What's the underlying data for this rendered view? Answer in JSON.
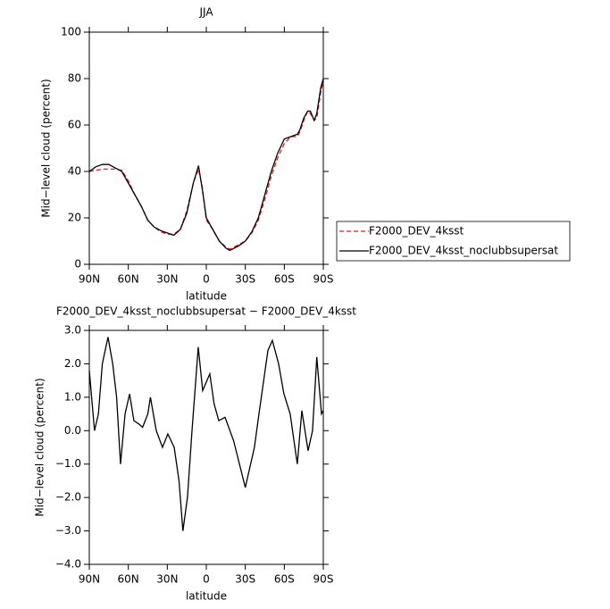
{
  "chart_data": [
    {
      "type": "line",
      "title": "JJA",
      "x_label": "latitude",
      "y_label": "Mid−level cloud (percent)",
      "xlim": [
        90,
        -90
      ],
      "xticks": [
        {
          "value": 90,
          "label": "90N"
        },
        {
          "value": 60,
          "label": "60N"
        },
        {
          "value": 30,
          "label": "30N"
        },
        0,
        {
          "value": -30,
          "label": "30S"
        },
        {
          "value": -60,
          "label": "60S"
        },
        {
          "value": -90,
          "label": "90S"
        }
      ],
      "ylim": [
        0,
        100
      ],
      "yticks": [
        0,
        20,
        40,
        60,
        80,
        100
      ],
      "legend": "right",
      "x": [
        90,
        85,
        80,
        75,
        70,
        65,
        60,
        55,
        50,
        45,
        40,
        35,
        30,
        25,
        20,
        15,
        10,
        6,
        3,
        0,
        -5,
        -10,
        -15,
        -18,
        -20,
        -25,
        -30,
        -35,
        -40,
        -45,
        -50,
        -55,
        -60,
        -65,
        -70,
        -72,
        -75,
        -78,
        -80,
        -83,
        -85,
        -88,
        -90
      ],
      "series": [
        {
          "name": "F2000_DEV_4ksst",
          "color": "#e41a1c",
          "dashed": true,
          "values": [
            40,
            40.5,
            41,
            41,
            41,
            40.5,
            36,
            30,
            25,
            19,
            16,
            14,
            13,
            13,
            15,
            23,
            35,
            41,
            33,
            19,
            15,
            10,
            7.5,
            6.5,
            7,
            8.5,
            10,
            13.5,
            19,
            28,
            38,
            46,
            52,
            55,
            55,
            57,
            62,
            66,
            65,
            62,
            63,
            74,
            79
          ]
        },
        {
          "name": "F2000_DEV_4ksst_noclubbsupersat",
          "color": "#000000",
          "dashed": false,
          "values": [
            40,
            42,
            43,
            43,
            41.5,
            40,
            35,
            30,
            25,
            19,
            16,
            14.5,
            13.5,
            12.5,
            15,
            22,
            35,
            42.5,
            32,
            20,
            15,
            10,
            7,
            6,
            6.5,
            8,
            10,
            14,
            20,
            30,
            40,
            48,
            54,
            55,
            56,
            58,
            63,
            66,
            66,
            62,
            65,
            76,
            80
          ]
        }
      ]
    },
    {
      "type": "line",
      "title": "F2000_DEV_4ksst_noclubbsupersat − F2000_DEV_4ksst",
      "x_label": "latitude",
      "y_label": "Mid−level cloud (percent)",
      "xlim": [
        90,
        -90
      ],
      "xticks": [
        {
          "value": 90,
          "label": "90N"
        },
        {
          "value": 60,
          "label": "60N"
        },
        {
          "value": 30,
          "label": "30N"
        },
        0,
        {
          "value": -30,
          "label": "30S"
        },
        {
          "value": -60,
          "label": "60S"
        },
        {
          "value": -90,
          "label": "90S"
        }
      ],
      "ylim": [
        -4,
        3
      ],
      "yticks": [
        {
          "value": -4,
          "label": "−4.0"
        },
        {
          "value": -3,
          "label": "−3.0"
        },
        {
          "value": -2,
          "label": "−2.0"
        },
        {
          "value": -1,
          "label": "−1.0"
        },
        {
          "value": 0,
          "label": "0.0"
        },
        {
          "value": 1,
          "label": "1.0"
        },
        {
          "value": 2,
          "label": "2.0"
        },
        {
          "value": 3,
          "label": "3.0"
        }
      ],
      "x": [
        90,
        86,
        83,
        80,
        75.6,
        72,
        69,
        66,
        62.5,
        59,
        55.7,
        52,
        49,
        45,
        43,
        38.5,
        33.7,
        29.6,
        24.7,
        21,
        18,
        14.5,
        11,
        6.2,
        2.8,
        -2.7,
        -6,
        -9.6,
        -14.4,
        -21,
        -30,
        -37,
        -40.5,
        -47.4,
        -50.8,
        -55.6,
        -59.7,
        -64.5,
        -70,
        -73.5,
        -78.3,
        -81.7,
        -85,
        -88.6,
        -90
      ],
      "series": [
        {
          "color": "#000000",
          "dashed": false,
          "values": [
            1.8,
            0,
            0.5,
            2.0,
            2.8,
            2.0,
            1.0,
            -1.0,
            0.5,
            1.1,
            0.3,
            0.2,
            0.1,
            0.5,
            1.0,
            0.0,
            -0.5,
            -0.1,
            -0.5,
            -1.5,
            -3.0,
            -2.0,
            0.0,
            2.5,
            1.2,
            1.7,
            0.8,
            0.3,
            0.4,
            -0.3,
            -1.7,
            -0.5,
            0.5,
            2.4,
            2.7,
            2.0,
            1.1,
            0.5,
            -1.0,
            0.6,
            -0.6,
            0.0,
            2.2,
            0.5,
            0.6
          ]
        }
      ]
    }
  ]
}
